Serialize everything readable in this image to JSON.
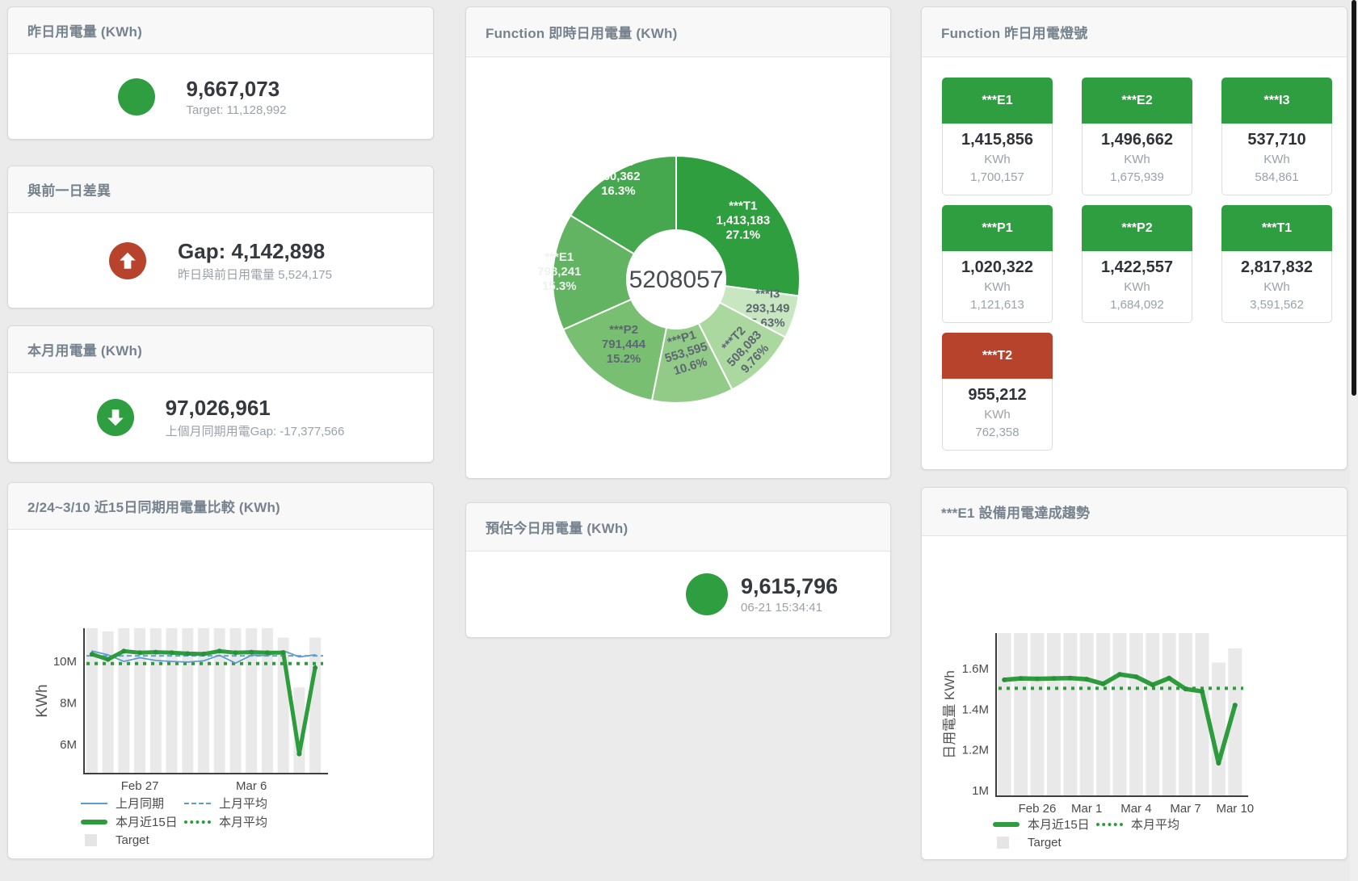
{
  "colors": {
    "green": "#2e9e41",
    "red": "#b8432c",
    "blue_line": "#5e9cd0",
    "green_line": "#2d9c3c",
    "target_bar": "#e9e9e9",
    "title_gray": "#76838f"
  },
  "cards": {
    "yesterday": {
      "title": "昨日用電量 (KWh)",
      "value": "9,667,073",
      "sub": "Target: 11,128,992"
    },
    "gap": {
      "title": "與前一日差異",
      "value": "Gap: 4,142,898",
      "sub": "昨日與前日用電量 5,524,175"
    },
    "month": {
      "title": "本月用電量 (KWh)",
      "value": "97,026,961",
      "sub": "上個月同期用電Gap: -17,377,566"
    },
    "donut": {
      "title": "Function 即時日用電量 (KWh)"
    },
    "lights": {
      "title": "Function 昨日用電燈號"
    },
    "estimate": {
      "title": "預估今日用電量 (KWh)",
      "value": "9,615,796",
      "sub": "06-21 15:34:41"
    },
    "compare": {
      "title": "2/24~3/10 近15日同期用電量比較 (KWh)"
    },
    "trend": {
      "title": "***E1 設備用電達成趨勢"
    }
  },
  "lights": {
    "unit": "KWh",
    "tiles": [
      {
        "label": "***E1",
        "status": "green",
        "value": "1,415,856",
        "target": "1,700,157"
      },
      {
        "label": "***E2",
        "status": "green",
        "value": "1,496,662",
        "target": "1,675,939"
      },
      {
        "label": "***I3",
        "status": "green",
        "value": "537,710",
        "target": "584,861"
      },
      {
        "label": "***P1",
        "status": "green",
        "value": "1,020,322",
        "target": "1,121,613"
      },
      {
        "label": "***P2",
        "status": "green",
        "value": "1,422,557",
        "target": "1,684,092"
      },
      {
        "label": "***T1",
        "status": "green",
        "value": "2,817,832",
        "target": "3,591,562"
      },
      {
        "label": "***T2",
        "status": "red",
        "value": "955,212",
        "target": "762,358"
      }
    ]
  },
  "chart_data": {
    "realtime_donut": {
      "type": "pie",
      "title": "Function 即時日用電量 (KWh)",
      "center_label": "5208057",
      "total": 5208057,
      "slices": [
        {
          "name": "***T1",
          "value": 1413183,
          "display": "1,413,183",
          "percent": "27.1%",
          "color": "#2f9e3f",
          "label_color": "#ffffff"
        },
        {
          "name": "***I3",
          "value": 293149,
          "display": "293,149",
          "percent": "5.63%",
          "color": "#c8e6c0",
          "label_color": "#5d6771"
        },
        {
          "name": "***T2",
          "value": 508083,
          "display": "508,083",
          "percent": "9.76%",
          "color": "#abd89f",
          "label_color": "#5d6771"
        },
        {
          "name": "***P1",
          "value": 553595,
          "display": "553,595",
          "percent": "10.6%",
          "color": "#92cb88",
          "label_color": "#5d6771"
        },
        {
          "name": "***P2",
          "value": 791444,
          "display": "791,444",
          "percent": "15.2%",
          "color": "#79bf72",
          "label_color": "#5d6771"
        },
        {
          "name": "***E1",
          "value": 798241,
          "display": "798,241",
          "percent": "15.3%",
          "color": "#62b463",
          "label_color": "#eef2ee"
        },
        {
          "name": "***E2",
          "value": 850362,
          "display": "850,362",
          "percent": "16.3%",
          "color": "#46a84e",
          "label_color": "#ffffff"
        }
      ]
    },
    "compare_15day": {
      "type": "bar+line",
      "title": "2/24~3/10 近15日同期用電量比較 (KWh)",
      "ylabel": "KWh",
      "unit": "M KWh",
      "days": 15,
      "ylim_M": [
        4.6,
        11.6
      ],
      "yticks": [
        {
          "label": "6M",
          "v": 6
        },
        {
          "label": "8M",
          "v": 8
        },
        {
          "label": "10M",
          "v": 10
        }
      ],
      "x_ticks": [
        {
          "index": 3,
          "label": "Feb 27"
        },
        {
          "index": 10,
          "label": "Mar 6"
        }
      ],
      "series": [
        {
          "name": "Target",
          "type": "bar",
          "color": "#e9e9e9",
          "values_M": [
            11.6,
            11.45,
            11.6,
            11.6,
            11.6,
            11.6,
            11.6,
            11.6,
            11.6,
            11.6,
            11.6,
            11.6,
            11.15,
            8.75,
            11.15
          ]
        },
        {
          "name": "上月同期",
          "type": "line",
          "color": "#5e9cd0",
          "width": 1.8,
          "values_M": [
            10.5,
            10.32,
            10.0,
            10.18,
            10.05,
            10.0,
            9.97,
            10.03,
            10.3,
            9.92,
            10.3,
            10.28,
            10.52,
            10.22,
            10.32
          ]
        },
        {
          "name": "上月平均",
          "type": "avg",
          "color": "#5e9cd0",
          "width": 1.8,
          "dash": "6 4",
          "value_M": 10.27
        },
        {
          "name": "本月近15日",
          "type": "line",
          "color": "#2d9c3c",
          "width": 5,
          "dots": true,
          "dot_color": "#27913a",
          "values_M": [
            10.35,
            10.1,
            10.5,
            10.42,
            10.45,
            10.42,
            10.38,
            10.36,
            10.5,
            10.42,
            10.45,
            10.42,
            10.42,
            5.55,
            9.7
          ]
        },
        {
          "name": "本月平均",
          "type": "avg",
          "color": "#2d9c3c",
          "width": 4,
          "dash": "4 6",
          "value_M": 9.9
        }
      ]
    },
    "e1_trend": {
      "type": "bar+line",
      "title": "***E1 設備用電達成趨勢",
      "ylabel": "日用電量 KWh",
      "unit": "M KWh",
      "days": 15,
      "ylim_M": [
        0.972,
        1.775
      ],
      "yticks": [
        {
          "label": "1M",
          "v": 1.0
        },
        {
          "label": "1.2M",
          "v": 1.2
        },
        {
          "label": "1.4M",
          "v": 1.4
        },
        {
          "label": "1.6M",
          "v": 1.6
        }
      ],
      "x_ticks": [
        {
          "index": 2,
          "label": "Feb 26"
        },
        {
          "index": 5,
          "label": "Mar 1"
        },
        {
          "index": 8,
          "label": "Mar 4"
        },
        {
          "index": 11,
          "label": "Mar 7"
        },
        {
          "index": 14,
          "label": "Mar 10"
        }
      ],
      "series": [
        {
          "name": "Target",
          "type": "bar",
          "color": "#e9e9e9",
          "values_M": [
            1.775,
            1.775,
            1.775,
            1.775,
            1.775,
            1.775,
            1.775,
            1.775,
            1.775,
            1.775,
            1.775,
            1.775,
            1.775,
            1.63,
            1.7
          ]
        },
        {
          "name": "本月近15日",
          "type": "line",
          "color": "#2d9c3c",
          "width": 5.5,
          "dots": true,
          "dot_color": "#27913a",
          "values_M": [
            1.545,
            1.552,
            1.55,
            1.552,
            1.553,
            1.548,
            1.525,
            1.572,
            1.56,
            1.52,
            1.553,
            1.5,
            1.488,
            1.135,
            1.42
          ]
        },
        {
          "name": "本月平均",
          "type": "avg",
          "color": "#2d9c3c",
          "width": 4,
          "dash": "4 6",
          "value_M": 1.503
        }
      ]
    }
  }
}
